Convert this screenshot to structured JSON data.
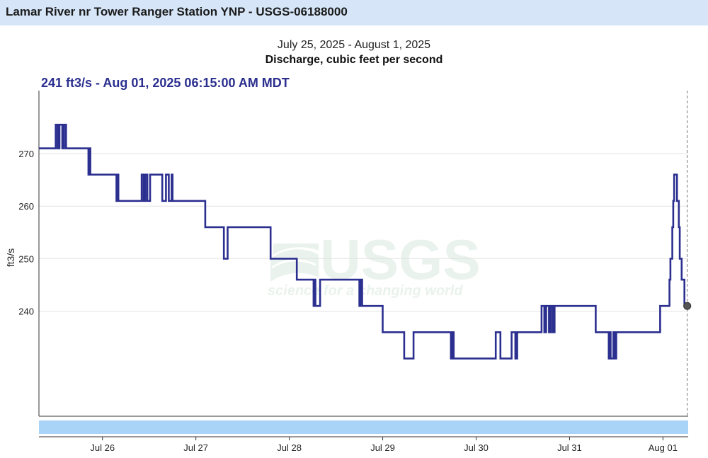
{
  "header": {
    "title": "Lamar River nr Tower Ranger Station YNP - USGS-06188000"
  },
  "chart_data": {
    "type": "line",
    "subtitle": "July 25, 2025 - August 1, 2025",
    "title": "Discharge, cubic feet per second",
    "readout": "241 ft3/s - Aug 01, 2025 06:15:00 AM MDT",
    "ylabel": "ft3/s",
    "xlabel": "",
    "ylim": [
      220,
      282
    ],
    "xlim_days": [
      -0.68,
      6.27
    ],
    "yticks": [
      240,
      250,
      260,
      270
    ],
    "xticks": [
      {
        "label": "Jul 26",
        "day": 0
      },
      {
        "label": "Jul 27",
        "day": 1
      },
      {
        "label": "Jul 28",
        "day": 2
      },
      {
        "label": "Jul 29",
        "day": 3
      },
      {
        "label": "Jul 30",
        "day": 4
      },
      {
        "label": "Jul 31",
        "day": 5
      },
      {
        "label": "Aug 01",
        "day": 6
      }
    ],
    "grid": true,
    "line_color": "#2b2f8f",
    "watermark": {
      "logo": "USGS",
      "tagline": "science for a changing world"
    },
    "current_point": {
      "day": 6.26,
      "value": 241
    },
    "series": [
      {
        "name": "",
        "points": [
          [
            -0.68,
            271
          ],
          [
            -0.5,
            271
          ],
          [
            -0.5,
            275.5
          ],
          [
            -0.48,
            275.5
          ],
          [
            -0.48,
            271
          ],
          [
            -0.46,
            271
          ],
          [
            -0.46,
            275.5
          ],
          [
            -0.43,
            275.5
          ],
          [
            -0.43,
            271
          ],
          [
            -0.41,
            271
          ],
          [
            -0.41,
            275.5
          ],
          [
            -0.39,
            275.5
          ],
          [
            -0.39,
            271
          ],
          [
            -0.15,
            271
          ],
          [
            -0.15,
            266
          ],
          [
            -0.14,
            266
          ],
          [
            -0.14,
            271
          ],
          [
            -0.13,
            271
          ],
          [
            -0.13,
            266
          ],
          [
            0.15,
            266
          ],
          [
            0.15,
            261
          ],
          [
            0.16,
            261
          ],
          [
            0.16,
            266
          ],
          [
            0.17,
            266
          ],
          [
            0.17,
            261
          ],
          [
            0.42,
            261
          ],
          [
            0.42,
            266
          ],
          [
            0.44,
            266
          ],
          [
            0.44,
            261
          ],
          [
            0.46,
            261
          ],
          [
            0.46,
            266
          ],
          [
            0.48,
            266
          ],
          [
            0.48,
            261
          ],
          [
            0.51,
            261
          ],
          [
            0.51,
            266
          ],
          [
            0.64,
            266
          ],
          [
            0.64,
            261
          ],
          [
            0.68,
            261
          ],
          [
            0.68,
            266
          ],
          [
            0.71,
            266
          ],
          [
            0.71,
            261
          ],
          [
            0.74,
            261
          ],
          [
            0.74,
            266
          ],
          [
            0.75,
            266
          ],
          [
            0.75,
            261
          ],
          [
            1.1,
            261
          ],
          [
            1.1,
            256
          ],
          [
            1.3,
            256
          ],
          [
            1.3,
            250
          ],
          [
            1.34,
            250
          ],
          [
            1.34,
            256
          ],
          [
            1.8,
            256
          ],
          [
            1.8,
            250
          ],
          [
            2.08,
            250
          ],
          [
            2.08,
            246
          ],
          [
            2.26,
            246
          ],
          [
            2.26,
            241
          ],
          [
            2.27,
            241
          ],
          [
            2.27,
            246
          ],
          [
            2.28,
            246
          ],
          [
            2.28,
            241
          ],
          [
            2.33,
            241
          ],
          [
            2.33,
            246
          ],
          [
            2.75,
            246
          ],
          [
            2.75,
            241
          ],
          [
            2.76,
            241
          ],
          [
            2.76,
            246
          ],
          [
            2.78,
            246
          ],
          [
            2.78,
            241
          ],
          [
            3.0,
            241
          ],
          [
            3.0,
            236
          ],
          [
            3.23,
            236
          ],
          [
            3.23,
            231
          ],
          [
            3.33,
            231
          ],
          [
            3.33,
            236
          ],
          [
            3.73,
            236
          ],
          [
            3.73,
            231
          ],
          [
            3.74,
            231
          ],
          [
            3.74,
            236
          ],
          [
            3.76,
            236
          ],
          [
            3.76,
            231
          ],
          [
            4.21,
            231
          ],
          [
            4.21,
            236
          ],
          [
            4.26,
            236
          ],
          [
            4.26,
            231
          ],
          [
            4.38,
            231
          ],
          [
            4.38,
            236
          ],
          [
            4.42,
            236
          ],
          [
            4.42,
            231
          ],
          [
            4.44,
            231
          ],
          [
            4.44,
            236
          ],
          [
            4.7,
            236
          ],
          [
            4.7,
            241
          ],
          [
            4.73,
            241
          ],
          [
            4.73,
            236
          ],
          [
            4.75,
            236
          ],
          [
            4.75,
            241
          ],
          [
            4.78,
            241
          ],
          [
            4.78,
            236
          ],
          [
            4.8,
            236
          ],
          [
            4.8,
            241
          ],
          [
            4.82,
            241
          ],
          [
            4.82,
            236
          ],
          [
            4.84,
            236
          ],
          [
            4.84,
            241
          ],
          [
            5.28,
            241
          ],
          [
            5.28,
            236
          ],
          [
            5.42,
            236
          ],
          [
            5.42,
            231
          ],
          [
            5.43,
            231
          ],
          [
            5.43,
            236
          ],
          [
            5.44,
            236
          ],
          [
            5.44,
            231
          ],
          [
            5.47,
            231
          ],
          [
            5.47,
            236
          ],
          [
            5.48,
            236
          ],
          [
            5.48,
            231
          ],
          [
            5.5,
            231
          ],
          [
            5.5,
            236
          ],
          [
            5.97,
            236
          ],
          [
            5.97,
            241
          ],
          [
            6.07,
            241
          ],
          [
            6.07,
            246
          ],
          [
            6.08,
            246
          ],
          [
            6.08,
            250
          ],
          [
            6.1,
            250
          ],
          [
            6.1,
            256
          ],
          [
            6.11,
            256
          ],
          [
            6.11,
            261
          ],
          [
            6.12,
            261
          ],
          [
            6.12,
            266
          ],
          [
            6.15,
            266
          ],
          [
            6.15,
            261
          ],
          [
            6.17,
            261
          ],
          [
            6.17,
            256
          ],
          [
            6.18,
            256
          ],
          [
            6.18,
            250
          ],
          [
            6.2,
            250
          ],
          [
            6.2,
            246
          ],
          [
            6.23,
            246
          ],
          [
            6.23,
            241
          ],
          [
            6.26,
            241
          ]
        ]
      }
    ]
  }
}
